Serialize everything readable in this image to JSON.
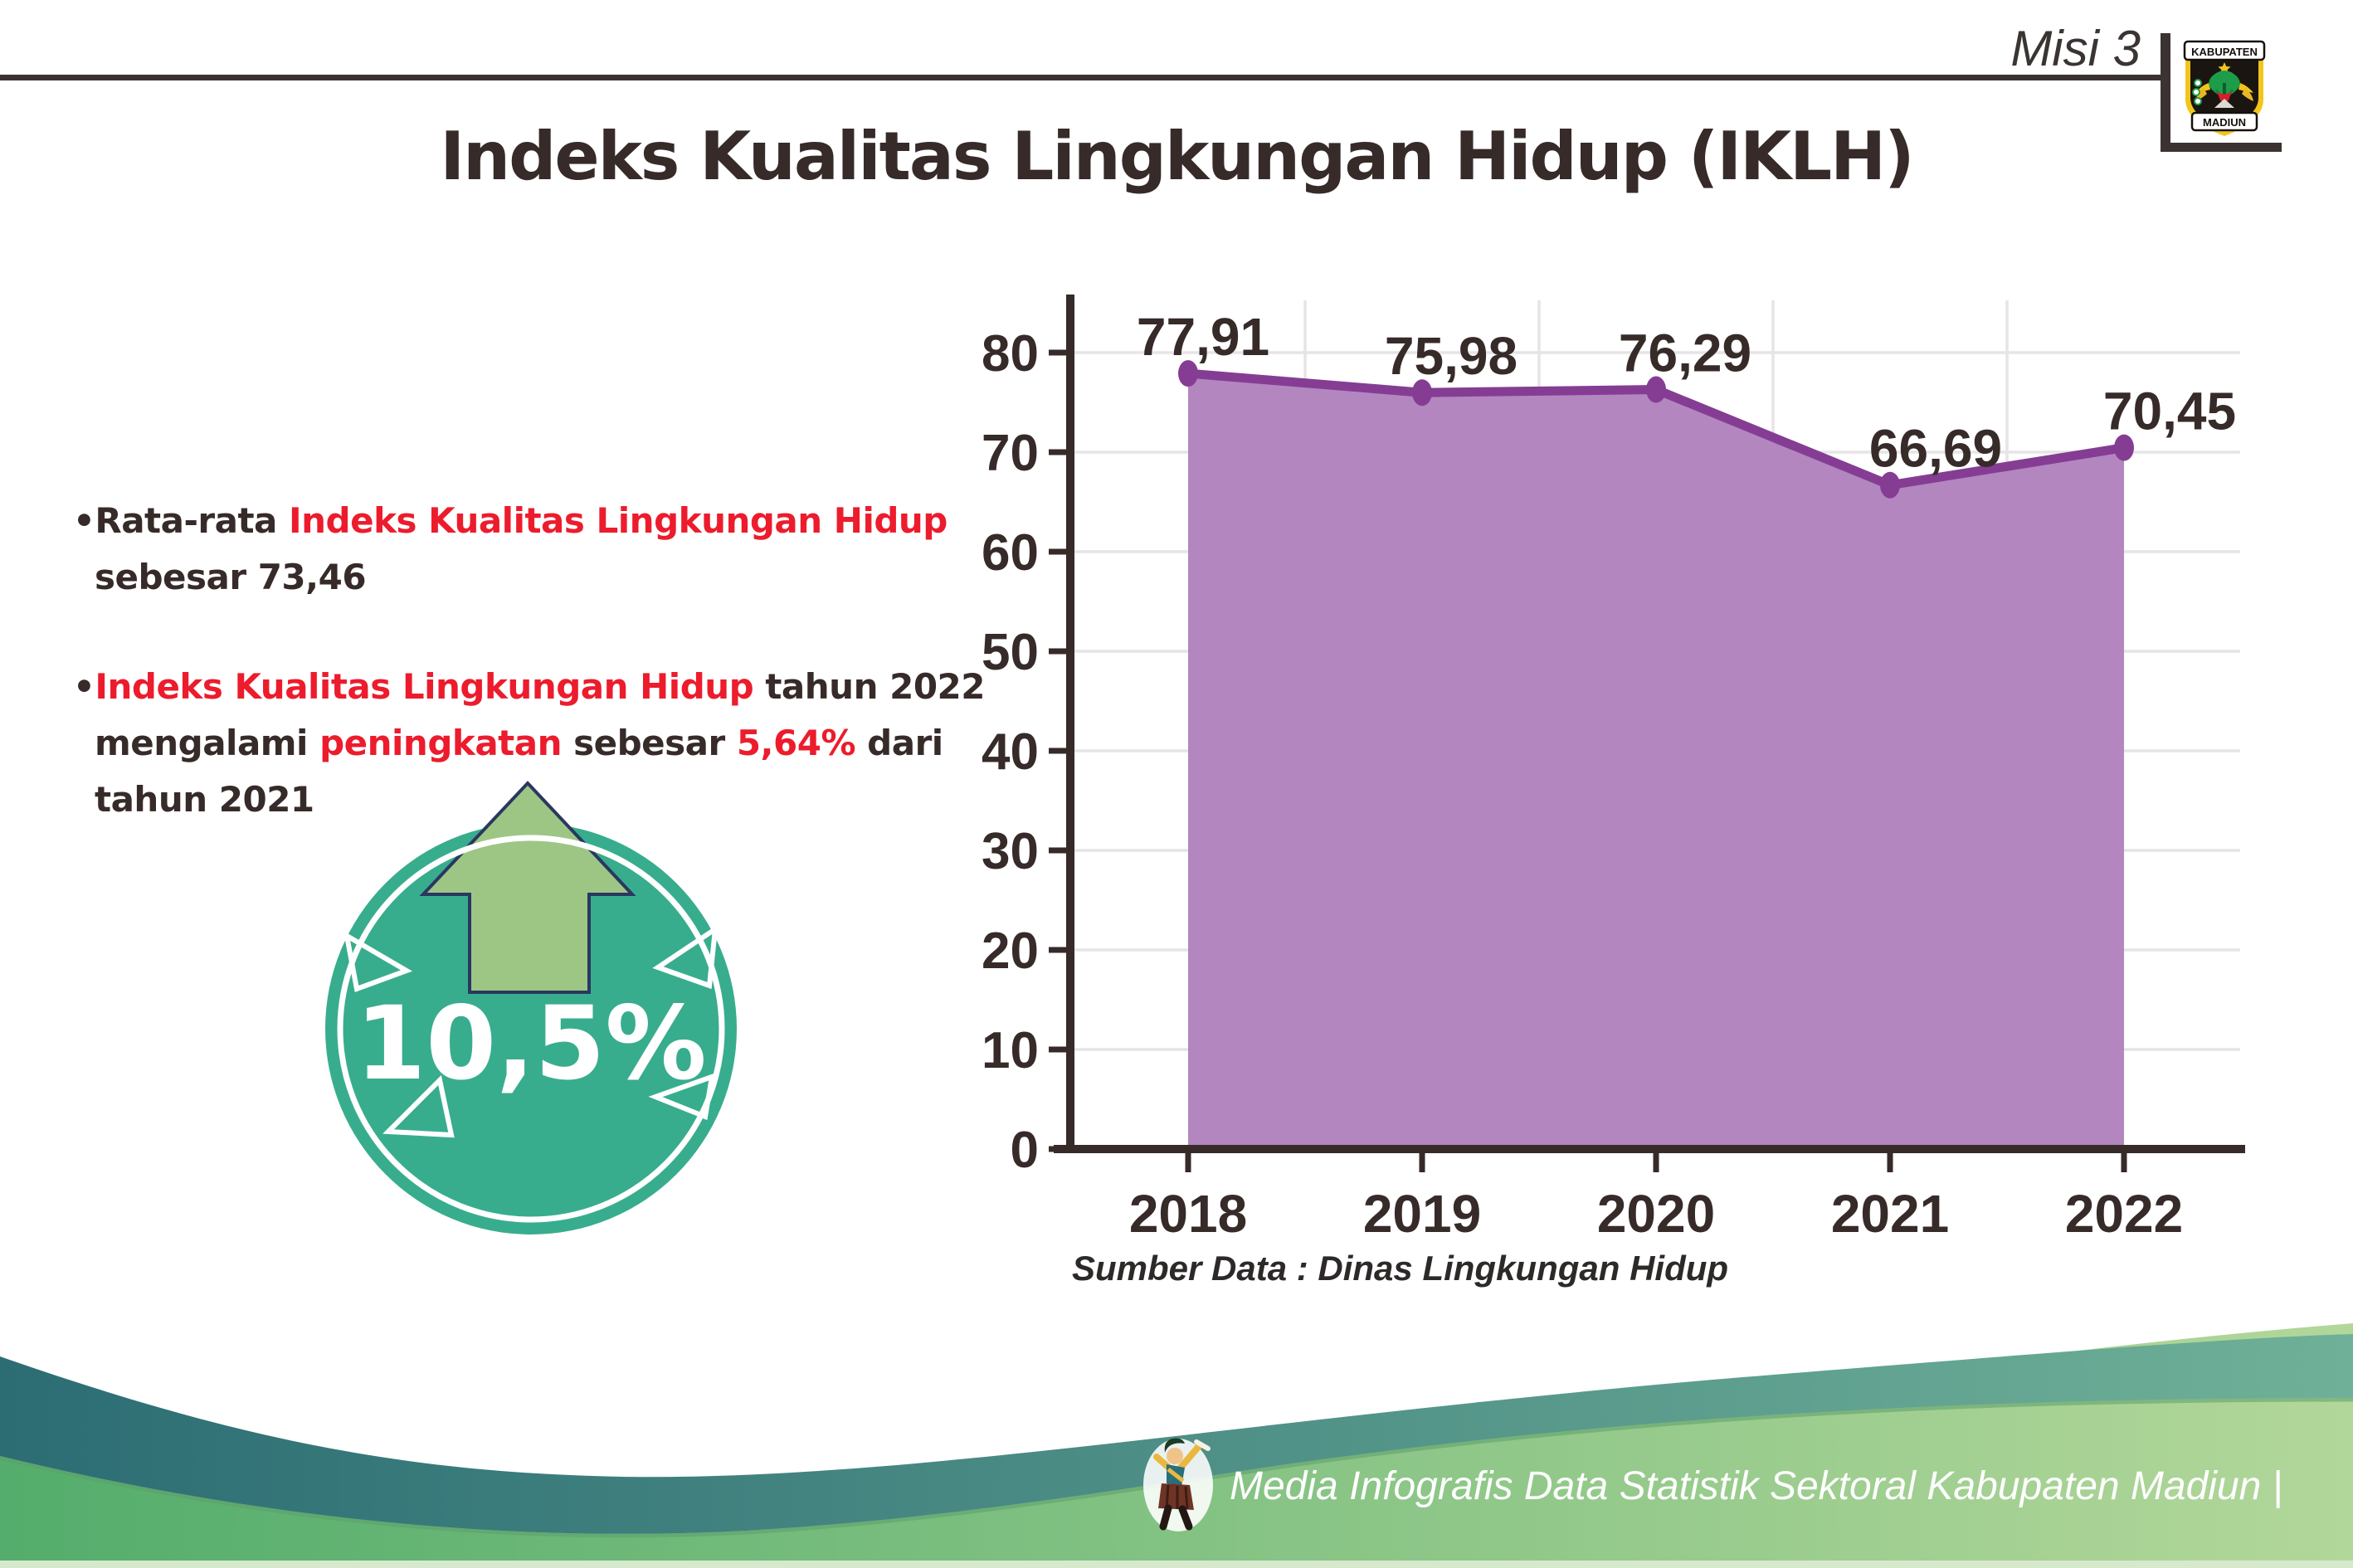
{
  "header": {
    "misi_label": "Misi 3",
    "logo": {
      "top_banner": "KABUPATEN",
      "bottom_banner": "MADIUN"
    }
  },
  "title": "Indeks Kualitas Lingkungan Hidup (IKLH)",
  "insights": {
    "marker": "•",
    "bullets": [
      {
        "lines": [
          [
            {
              "t": "Rata-rata ",
              "c": "dark"
            },
            {
              "t": "Indeks Kualitas Lingkungan Hidup",
              "c": "red"
            }
          ],
          [
            {
              "t": "sebesar 73,46",
              "c": "dark"
            }
          ]
        ]
      },
      {
        "lines": [
          [
            {
              "t": "Indeks Kualitas Lingkungan Hidup",
              "c": "red"
            },
            {
              "t": " tahun 2022",
              "c": "dark"
            }
          ],
          [
            {
              "t": "mengalami ",
              "c": "dark"
            },
            {
              "t": "peningkatan",
              "c": "red"
            },
            {
              "t": " sebesar ",
              "c": "dark"
            },
            {
              "t": "5,64%",
              "c": "red"
            },
            {
              "t": " dari",
              "c": "dark"
            }
          ],
          [
            {
              "t": "tahun 2021",
              "c": "dark"
            }
          ]
        ]
      }
    ]
  },
  "badge": {
    "value": "10,5%"
  },
  "chart_data": {
    "type": "area",
    "title": "",
    "categories": [
      "2018",
      "2019",
      "2020",
      "2021",
      "2022"
    ],
    "values": [
      77.91,
      75.98,
      76.29,
      66.69,
      70.45
    ],
    "labels": [
      "77,91",
      "75,98",
      "76,29",
      "66,69",
      "70,45"
    ],
    "xlabel": "",
    "ylabel": "",
    "ylim": [
      0,
      80
    ],
    "yticks": [
      0,
      10,
      20,
      30,
      40,
      50,
      60,
      70,
      80
    ],
    "grid": true,
    "legend": false,
    "source_note": "Sumber Data : Dinas Lingkungan Hidup"
  },
  "footer": {
    "credit": "Media Infografis Data Statistik Sektoral Kabupaten Madiun |"
  },
  "colors": {
    "accent_red": "#ec1c2d",
    "text_dark": "#362b29",
    "area_fill": "#b386c0",
    "line_purple": "#853d94",
    "badge_teal": "#38ad8e",
    "arrow_green": "#9dc685",
    "arrow_outline": "#2a3760",
    "grid": "#e7e4e7",
    "footer_teal_dark": "#2c6d74",
    "footer_teal_light": "#6fb098",
    "footer_green_dark": "#54ad6c",
    "footer_green_light": "#b2d79a",
    "footer_strip": "#d7e9cc"
  }
}
